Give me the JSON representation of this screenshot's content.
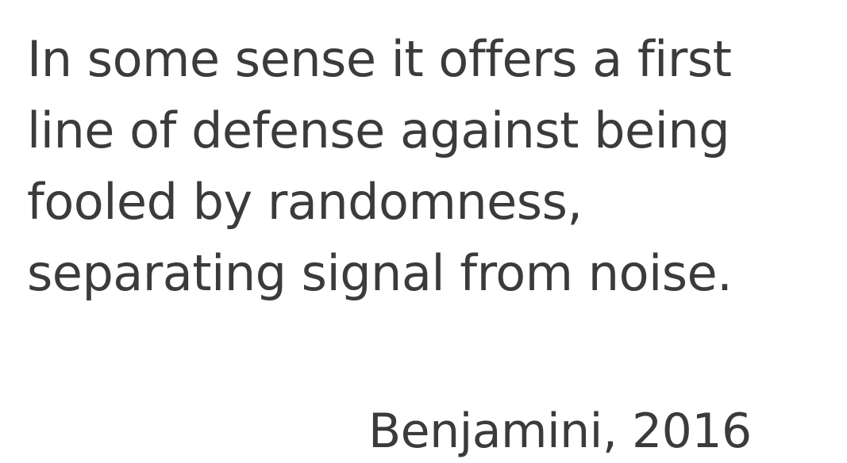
{
  "quote": {
    "lines": [
      "In some sense it offers a first",
      "line of defense against being",
      "fooled by randomness,",
      "separating signal from noise."
    ]
  },
  "attribution": "Benjamini, 2016"
}
